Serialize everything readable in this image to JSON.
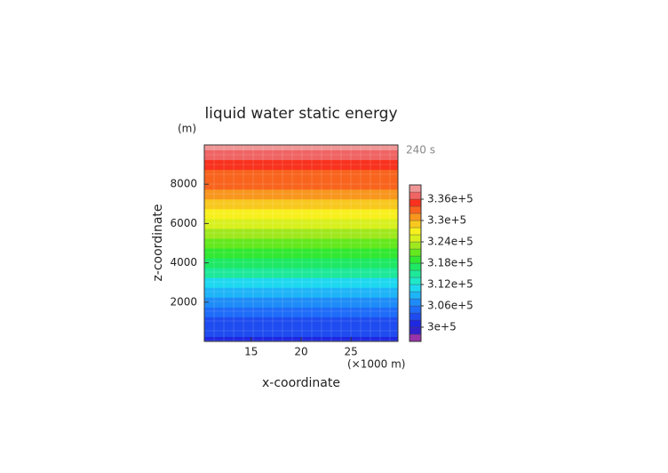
{
  "chart_data": {
    "type": "contour",
    "title": "liquid water static energy",
    "y_unit": "(m)",
    "time_label": "240 s",
    "xlabel": "x-coordinate",
    "ylabel": "z-coordinate",
    "x_unit": "(×1000 m)",
    "xlim": [
      10.3,
      29.7
    ],
    "xticks": [
      15,
      20,
      25
    ],
    "ylim": [
      0,
      10000
    ],
    "yticks": [
      2000,
      4000,
      6000,
      8000
    ],
    "y": [
      0,
      500,
      1000,
      1500,
      2000,
      2500,
      3000,
      3500,
      4000,
      4500,
      5000,
      5500,
      6000,
      6500,
      7000,
      7500,
      8000,
      8500,
      9000,
      9500,
      10000
    ],
    "values": [
      301000,
      302000,
      303500,
      305000,
      307000,
      309000,
      311000,
      314000,
      316500,
      318500,
      320000,
      322000,
      324000,
      326000,
      328000,
      330000,
      332000,
      333500,
      334500,
      336000,
      338000
    ],
    "levels": [
      296000,
      298000,
      300000,
      302000,
      304000,
      306000,
      308000,
      310000,
      312000,
      314000,
      316000,
      318000,
      320000,
      322000,
      324000,
      326000,
      328000,
      330000,
      332000,
      334000,
      336000,
      338000,
      340000
    ],
    "colors": [
      "#9933aa",
      "#3322cc",
      "#1e28e0",
      "#1e4cf0",
      "#1e6cf8",
      "#1e8cf8",
      "#1eb4f8",
      "#1ed8f0",
      "#1ee8c8",
      "#1ee89a",
      "#1ee864",
      "#32e832",
      "#64e81e",
      "#a0e81e",
      "#d8f01e",
      "#f8f01e",
      "#f8c81e",
      "#f8961e",
      "#f8641e",
      "#f8321e",
      "#f06464",
      "#f09696"
    ],
    "colorbar_ticks": [
      {
        "value": 300000,
        "label": "3e+5"
      },
      {
        "value": 306000,
        "label": "3.06e+5"
      },
      {
        "value": 312000,
        "label": "3.12e+5"
      },
      {
        "value": 318000,
        "label": "3.18e+5"
      },
      {
        "value": 324000,
        "label": "3.24e+5"
      },
      {
        "value": 330000,
        "label": "3.3e+5"
      },
      {
        "value": 336000,
        "label": "3.36e+5"
      }
    ]
  }
}
